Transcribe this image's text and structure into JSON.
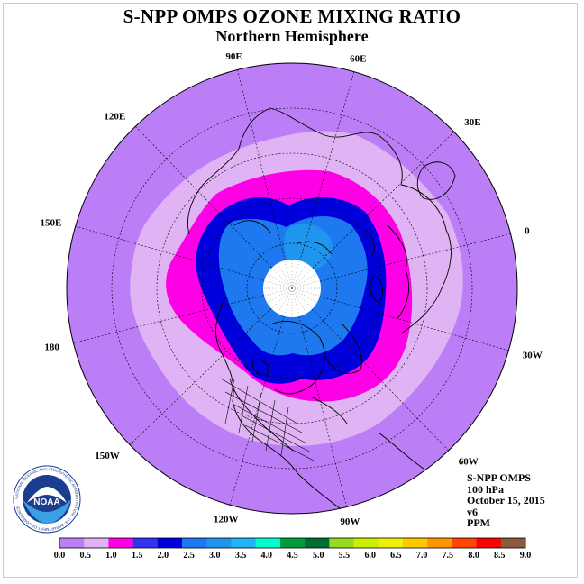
{
  "title": "S-NPP OMPS OZONE MIXING RATIO",
  "subtitle": "Northern Hemisphere",
  "longitude_labels": [
    {
      "text": "90E",
      "lon": 90
    },
    {
      "text": "60E",
      "lon": 60
    },
    {
      "text": "30E",
      "lon": 30
    },
    {
      "text": "0",
      "lon": 0
    },
    {
      "text": "30W",
      "lon": -30
    },
    {
      "text": "60W",
      "lon": -60
    },
    {
      "text": "90W",
      "lon": -90
    },
    {
      "text": "120W",
      "lon": -120
    },
    {
      "text": "150W",
      "lon": -150
    },
    {
      "text": "180",
      "lon": 180
    },
    {
      "text": "150E",
      "lon": 150
    },
    {
      "text": "120E",
      "lon": 120
    }
  ],
  "info": {
    "instrument": "S-NPP OMPS",
    "level": "100 hPa",
    "date": "October 15, 2015",
    "version": "v6",
    "units": "PPM"
  },
  "logo": {
    "center_text": "NOAA",
    "ring_text": "NATIONAL OCEANIC AND ATMOSPHERIC ADMINISTRATION · U.S. DEPARTMENT OF COMMERCE"
  },
  "colorbar": {
    "tick_labels": [
      "0.0",
      "0.5",
      "1.0",
      "1.5",
      "2.0",
      "2.5",
      "3.0",
      "3.5",
      "4.0",
      "4.5",
      "5.0",
      "5.5",
      "6.0",
      "6.5",
      "7.0",
      "7.5",
      "8.0",
      "8.5",
      "9.0"
    ],
    "colors": [
      "#bb7ef7",
      "#e0b4f4",
      "#ff00e6",
      "#3333ee",
      "#0000dd",
      "#1e78f0",
      "#1e96f0",
      "#1eb4f5",
      "#00ffcc",
      "#009b3a",
      "#006e32",
      "#96dc1e",
      "#c8f000",
      "#f0f000",
      "#ffc800",
      "#ff9600",
      "#ff4600",
      "#ff0000",
      "#8b5a3c"
    ]
  },
  "ozone_regions": [
    {
      "level": "0.0-0.5",
      "color": "#bb7ef7"
    },
    {
      "level": "0.5-1.0",
      "color": "#e0b4f4"
    },
    {
      "level": "1.0-1.5",
      "color": "#ff00e6"
    },
    {
      "level": "1.5-2.0",
      "color": "#0000dd"
    },
    {
      "level": "2.0-2.5",
      "color": "#1e78f0"
    },
    {
      "level": "2.5-3.0",
      "color": "#1e96f0"
    }
  ],
  "polar_gap_color": "#ffffff"
}
